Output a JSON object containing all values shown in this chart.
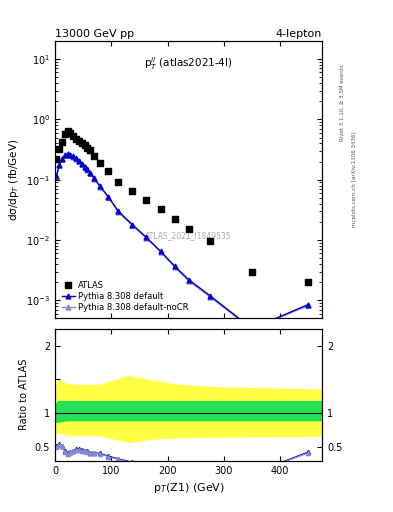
{
  "title_left": "13000 GeV pp",
  "title_right": "4-lepton",
  "plot_label": "p$_T^{ll}$ (atlas2021-4l)",
  "watermark": "ATLAS_2021_I1849535",
  "right_label_top": "Rivet 3.1.10, ≥ 3.5M events",
  "right_label_bot": "mcplots.cern.ch [arXiv:1306.3436]",
  "ylabel_main": "dσ/dp$_T$ (fb/GeV)",
  "ylabel_ratio": "Ratio to ATLAS",
  "xlabel": "p$_T$(Z1) (GeV)",
  "ylim_main": [
    0.0005,
    20
  ],
  "xlim": [
    0,
    475
  ],
  "ylim_ratio": [
    0.3,
    2.25
  ],
  "atlas_x": [
    2.5,
    7.5,
    12.5,
    17.5,
    22.5,
    27.5,
    32.5,
    37.5,
    42.5,
    47.5,
    52.5,
    57.5,
    62.5,
    70,
    80,
    95,
    112.5,
    137.5,
    162.5,
    187.5,
    212.5,
    237.5,
    275,
    350,
    450
  ],
  "atlas_y": [
    0.22,
    0.32,
    0.42,
    0.58,
    0.65,
    0.6,
    0.54,
    0.48,
    0.44,
    0.4,
    0.37,
    0.34,
    0.31,
    0.25,
    0.19,
    0.14,
    0.09,
    0.065,
    0.046,
    0.033,
    0.022,
    0.015,
    0.0095,
    0.003,
    0.002
  ],
  "pythia_default_x": [
    2.5,
    7.5,
    12.5,
    17.5,
    22.5,
    27.5,
    32.5,
    37.5,
    42.5,
    47.5,
    52.5,
    57.5,
    62.5,
    70,
    80,
    95,
    112.5,
    137.5,
    162.5,
    187.5,
    212.5,
    237.5,
    275,
    350,
    450
  ],
  "pythia_default_y": [
    0.115,
    0.175,
    0.22,
    0.255,
    0.265,
    0.26,
    0.245,
    0.225,
    0.205,
    0.185,
    0.165,
    0.148,
    0.13,
    0.105,
    0.078,
    0.052,
    0.03,
    0.018,
    0.011,
    0.0065,
    0.0037,
    0.0022,
    0.0012,
    0.00034,
    0.00085
  ],
  "pythia_noCR_x": [
    2.5,
    7.5,
    12.5,
    17.5,
    22.5,
    27.5,
    32.5,
    37.5,
    42.5,
    47.5,
    52.5,
    57.5,
    62.5,
    70,
    80,
    95,
    112.5,
    137.5,
    162.5,
    187.5,
    212.5,
    237.5,
    275,
    350,
    450
  ],
  "pythia_noCR_y": [
    0.113,
    0.172,
    0.218,
    0.252,
    0.262,
    0.257,
    0.242,
    0.222,
    0.202,
    0.182,
    0.162,
    0.145,
    0.128,
    0.103,
    0.076,
    0.051,
    0.029,
    0.0175,
    0.0108,
    0.0064,
    0.0036,
    0.0021,
    0.00115,
    0.00033,
    0.00082
  ],
  "ratio_pythia_default_x": [
    2.5,
    7.5,
    12.5,
    17.5,
    22.5,
    27.5,
    32.5,
    37.5,
    42.5,
    47.5,
    52.5,
    57.5,
    62.5,
    70,
    80,
    95,
    112.5,
    137.5,
    162.5,
    187.5,
    212.5,
    237.5,
    275,
    350,
    450
  ],
  "ratio_pythia_default_y": [
    0.52,
    0.55,
    0.52,
    0.44,
    0.41,
    0.43,
    0.45,
    0.47,
    0.47,
    0.46,
    0.45,
    0.44,
    0.42,
    0.42,
    0.41,
    0.37,
    0.33,
    0.28,
    0.24,
    0.2,
    0.17,
    0.15,
    0.13,
    0.11,
    0.43
  ],
  "ratio_pythia_noCR_x": [
    2.5,
    7.5,
    12.5,
    17.5,
    22.5,
    27.5,
    32.5,
    37.5,
    42.5,
    47.5,
    52.5,
    57.5,
    62.5,
    70,
    80,
    95,
    112.5,
    137.5,
    162.5,
    187.5,
    212.5,
    237.5,
    275,
    350,
    450
  ],
  "ratio_pythia_noCR_y": [
    0.51,
    0.54,
    0.52,
    0.43,
    0.4,
    0.43,
    0.45,
    0.46,
    0.46,
    0.45,
    0.44,
    0.43,
    0.41,
    0.41,
    0.4,
    0.36,
    0.32,
    0.27,
    0.23,
    0.2,
    0.16,
    0.14,
    0.125,
    0.107,
    0.415
  ],
  "color_atlas": "#000000",
  "color_pythia_default": "#0000cc",
  "color_pythia_noCR": "#8888cc",
  "color_green_band": "#00dd55",
  "color_yellow_band": "#ffff44"
}
